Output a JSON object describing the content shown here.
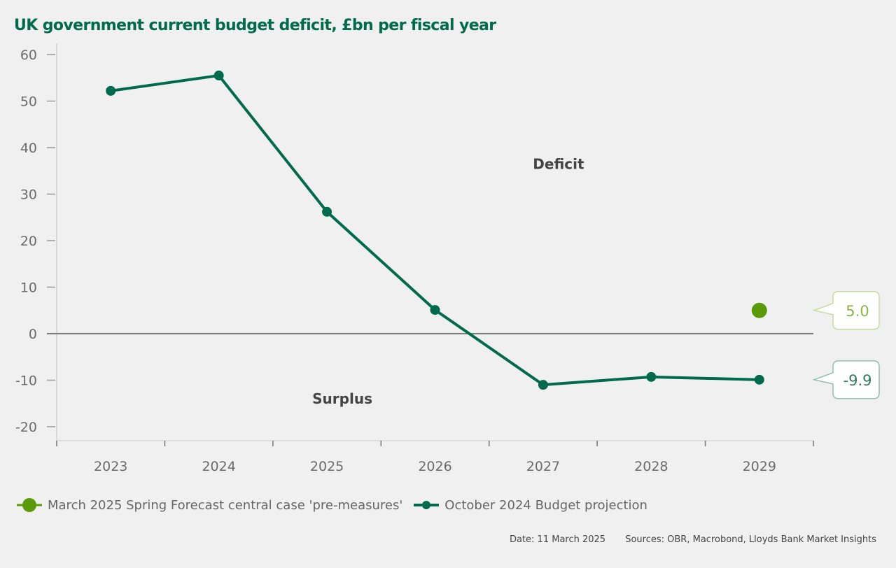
{
  "chart_data": {
    "type": "line",
    "title": "UK government current budget deficit, £bn per fiscal year",
    "xlabel": "",
    "ylabel": "",
    "categories": [
      "2023",
      "2024",
      "2025",
      "2026",
      "2027",
      "2028",
      "2029"
    ],
    "ylim": [
      -20,
      60
    ],
    "yticks": [
      60,
      50,
      40,
      30,
      20,
      10,
      0,
      -10,
      -20
    ],
    "ytick_labels": [
      "60",
      "50",
      "40",
      "30",
      "20",
      "10",
      "0",
      "-10",
      "-20"
    ],
    "grid": false,
    "legend_position": "bottom-left",
    "series": [
      {
        "name": "March 2025 Spring Forecast central case 'pre-measures'",
        "color": "#5a9a08",
        "marker": "large-circle",
        "values": [
          null,
          null,
          null,
          null,
          null,
          null,
          5.0
        ]
      },
      {
        "name": "October 2024 Budget projection",
        "color": "#006a4d",
        "marker": "circle-line",
        "values": [
          52.2,
          55.5,
          26.2,
          5.1,
          -11.0,
          -9.3,
          -9.9
        ]
      }
    ],
    "annotations": [
      {
        "text": "Deficit",
        "x_category": "2027",
        "y": 36.5
      },
      {
        "text": "Surplus",
        "x_category": "2025",
        "y": -14
      }
    ],
    "callouts": [
      {
        "text": "5.0",
        "series": 0,
        "category": "2029",
        "color": "#8db34a",
        "border": "#c5dca0"
      },
      {
        "text": "-9.9",
        "series": 1,
        "category": "2029",
        "color": "#2f7a5e",
        "border": "#8fbfab"
      }
    ]
  },
  "footer": {
    "date": "Date: 11 March 2025",
    "sources": "Sources: OBR, Macrobond, Lloyds Bank Market Insights"
  }
}
